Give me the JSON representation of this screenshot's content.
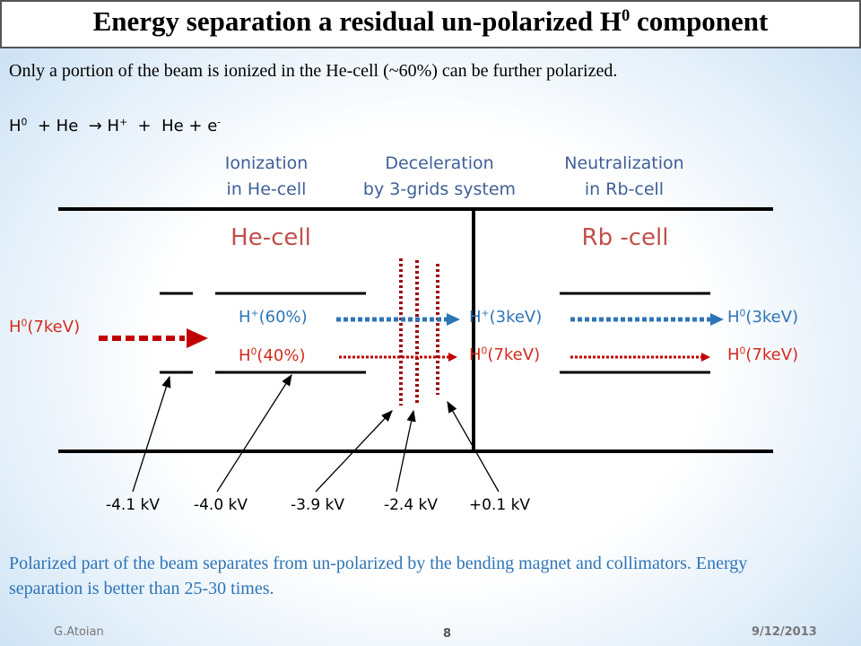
{
  "title": [
    {
      "text": "Energy separation a residual un-polarized H"
    },
    {
      "sup": "0"
    },
    {
      "text": " component"
    }
  ],
  "intro": "Only a portion of the beam is ionized in the He-cell (~60%) can be further polarized.",
  "reaction": [
    {
      "text": "H"
    },
    {
      "sup": "0"
    },
    {
      "text": "  + He  → H"
    },
    {
      "sup": "+"
    },
    {
      "text": "  +  He + e"
    },
    {
      "sup": "-"
    }
  ],
  "stages": [
    {
      "lines": [
        "Ionization",
        "in He-cell"
      ]
    },
    {
      "lines": [
        "Deceleration",
        "by 3-grids system"
      ]
    },
    {
      "lines": [
        "Neutralization",
        "in Rb-cell"
      ]
    }
  ],
  "cells": [
    "He-cell",
    "Rb -cell"
  ],
  "beams": {
    "input": [
      {
        "text": "H"
      },
      {
        "sup": "0"
      },
      {
        "text": "(7keV)"
      }
    ],
    "ionized": [
      {
        "text": "H"
      },
      {
        "sup": "+"
      },
      {
        "text": "(60%)"
      }
    ],
    "neutral": [
      {
        "text": "H"
      },
      {
        "sup": "0"
      },
      {
        "text": "(40%)"
      }
    ],
    "decel_ion": [
      {
        "text": "H"
      },
      {
        "sup": "+"
      },
      {
        "text": "(3keV)"
      }
    ],
    "decel_neutral": [
      {
        "text": "H"
      },
      {
        "sup": "0"
      },
      {
        "text": "(7keV)"
      }
    ],
    "out_polarized": [
      {
        "text": "H"
      },
      {
        "sup": "0"
      },
      {
        "text": "(3keV)"
      }
    ],
    "out_neutral": [
      {
        "text": "H"
      },
      {
        "sup": "0"
      },
      {
        "text": "(7keV)"
      }
    ]
  },
  "voltages": [
    "-4.1 kV",
    "-4.0 kV",
    "-3.9 kV",
    "-2.4 kV",
    "+0.1 kV"
  ],
  "conclusion": "Polarized part of the beam separates from un-polarized by the bending magnet and collimators. Energy separation is better than 25-30 times.",
  "footer": {
    "author": "G.Atoian",
    "page": "8",
    "date": "9/12/2013"
  }
}
